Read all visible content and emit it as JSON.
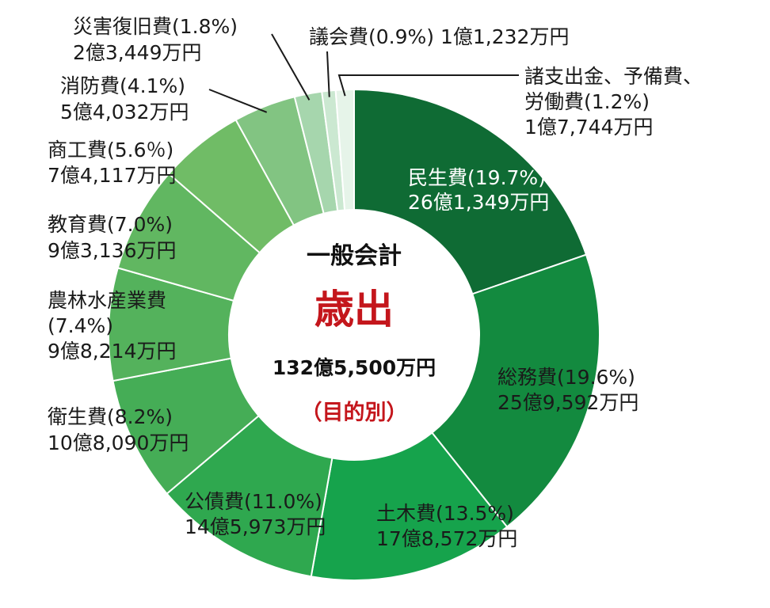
{
  "chart_data": {
    "type": "pie",
    "center": {
      "title": "一般会計",
      "main": "歳出",
      "total": "132億5,500万円",
      "sub": "（目的別）"
    },
    "slices": [
      {
        "name": "民生費",
        "percent": 19.7,
        "label1": "民生費(19.7%)",
        "label2": "26億1,349万円",
        "color": "#0f6b34"
      },
      {
        "name": "総務費",
        "percent": 19.6,
        "label1": "総務費(19.6%)",
        "label2": "25億9,592万円",
        "color": "#138a3f"
      },
      {
        "name": "土木費",
        "percent": 13.5,
        "label1": "土木費(13.5%)",
        "label2": "17億8,572万円",
        "color": "#16a34c"
      },
      {
        "name": "公債費",
        "percent": 11.0,
        "label1": "公債費(11.0%)",
        "label2": "14億5,973万円",
        "color": "#2fa84f"
      },
      {
        "name": "衛生費",
        "percent": 8.2,
        "label1": "衛生費(8.2%)",
        "label2": "10億8,090万円",
        "color": "#45ad56"
      },
      {
        "name": "農林水産業費",
        "percent": 7.4,
        "label1": "農林水産業費",
        "label2": "(7.4%)",
        "label3": "9億8,214万円",
        "color": "#54b25c"
      },
      {
        "name": "教育費",
        "percent": 7.0,
        "label1": "教育費(7.0%)",
        "label2": "9億3,136万円",
        "color": "#61b761"
      },
      {
        "name": "商工費",
        "percent": 5.6,
        "label1": "商工費(5.6％)",
        "label2": "7億4,117万円",
        "color": "#70bc66"
      },
      {
        "name": "消防費",
        "percent": 4.1,
        "label1": "消防費(4.1%)",
        "label2": "5億4,032万円",
        "color": "#82c482"
      },
      {
        "name": "災害復旧費",
        "percent": 1.8,
        "label1": "災害復旧費(1.8%)",
        "label2": "2億3,449万円",
        "color": "#a6d6ad"
      },
      {
        "name": "議会費",
        "percent": 0.9,
        "label1": "議会費(0.9%) 1億1,232万円",
        "color": "#cbe8d1"
      },
      {
        "name": "諸支出金、予備費、労働費",
        "percent": 1.2,
        "label1": "諸支出金、予備費、",
        "label2": "労働費(1.2%)",
        "label3": "1億7,744万円",
        "color": "#e6f4e9"
      }
    ]
  }
}
